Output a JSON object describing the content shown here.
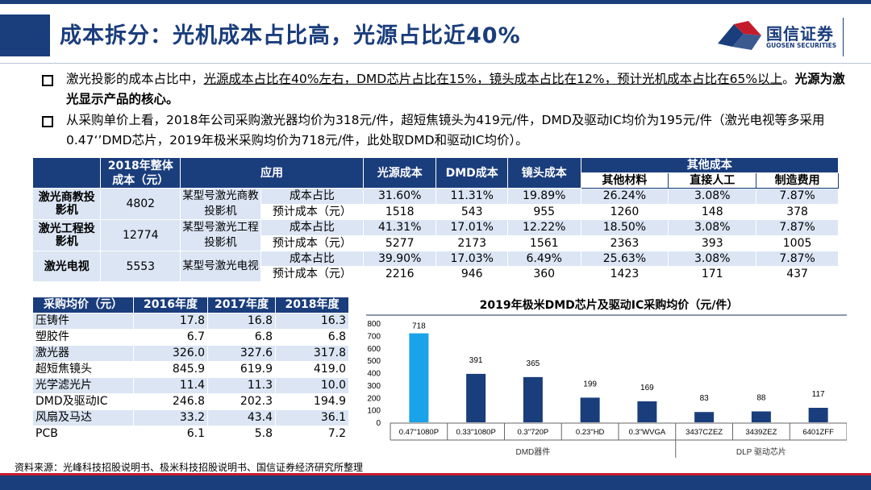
{
  "title": "成本拆分：光机成本占比高，光源占比近40%",
  "logo": {
    "cn": "国信证券",
    "en": "GUOSEN SECURITIES"
  },
  "bullets": [
    {
      "pre": "激光投影的成本占比中，",
      "underline": "光源成本占比在40%左右，DMD芯片占比在15%，镜头成本占比在12%，预计光机成本占比在65%以上",
      "mid": "。",
      "bold": "光源为激光显示产品的核心。"
    },
    {
      "text": "从采购单价上看，2018年公司采购激光器均价为318元/件，超短焦镜头为419元/件，DMD及驱动IC均价为195元/件（激光电视等多采用0.47‘’DMD芯片，2019年极米采购均价为718元/件，此处取DMD和驱动IC均价）。"
    }
  ],
  "main_table": {
    "headers": {
      "total": "2018年整体成本（元）",
      "app": "应用",
      "light": "光源成本",
      "dmd": "DMD成本",
      "lens": "镜头成本",
      "other": "其他成本",
      "other_sub": [
        "其他材料",
        "直接人工",
        "制造费用"
      ]
    },
    "rows": [
      {
        "name": "激光商教投影机",
        "total": "4802",
        "app": "某型号激光商教投影机",
        "lines": [
          {
            "metric": "成本占比",
            "values": [
              "31.60%",
              "11.31%",
              "19.89%",
              "26.24%",
              "3.08%",
              "7.87%"
            ]
          },
          {
            "metric": "预计成本（元）",
            "values": [
              "1518",
              "543",
              "955",
              "1260",
              "148",
              "378"
            ]
          }
        ]
      },
      {
        "name": "激光工程投影机",
        "total": "12774",
        "app": "某型号激光工程投影机",
        "lines": [
          {
            "metric": "成本占比",
            "values": [
              "41.31%",
              "17.01%",
              "12.22%",
              "18.50%",
              "3.08%",
              "7.87%"
            ]
          },
          {
            "metric": "预计成本（元）",
            "values": [
              "5277",
              "2173",
              "1561",
              "2363",
              "393",
              "1005"
            ]
          }
        ]
      },
      {
        "name": "激光电视",
        "total": "5553",
        "app": "某型号激光电视",
        "lines": [
          {
            "metric": "成本占比",
            "values": [
              "39.90%",
              "17.03%",
              "6.49%",
              "25.63%",
              "3.08%",
              "7.87%"
            ]
          },
          {
            "metric": "预计成本（元）",
            "values": [
              "2216",
              "946",
              "360",
              "1423",
              "171",
              "437"
            ]
          }
        ]
      }
    ]
  },
  "price_table": {
    "headers": [
      "采购均价（元）",
      "2016年度",
      "2017年度",
      "2018年度"
    ],
    "rows": [
      [
        "压铸件",
        "17.8",
        "16.8",
        "16.3"
      ],
      [
        "塑胶件",
        "6.7",
        "6.8",
        "6.8"
      ],
      [
        "激光器",
        "326.0",
        "327.6",
        "317.8"
      ],
      [
        "超短焦镜头",
        "845.9",
        "619.9",
        "419.0"
      ],
      [
        "光学滤光片",
        "11.4",
        "11.3",
        "10.0"
      ],
      [
        "DMD及驱动IC",
        "246.8",
        "202.3",
        "194.9"
      ],
      [
        "风扇及马达",
        "33.2",
        "43.4",
        "36.1"
      ],
      [
        "PCB",
        "6.1",
        "5.8",
        "7.2"
      ]
    ]
  },
  "chart_data": {
    "type": "bar",
    "title": "2019年极米DMD芯片及驱动IC采购均价（元/件）",
    "categories": [
      "0.47\"1080P",
      "0.33\"1080P",
      "0.3\"720P",
      "0.23\"HD",
      "0.3\"WVGA",
      "3437CZEZ",
      "3439ZEZ",
      "6401ZFF"
    ],
    "values": [
      718,
      391,
      365,
      199,
      169,
      83,
      88,
      117
    ],
    "groups": [
      {
        "name": "DMD器件",
        "start": 0,
        "end": 4
      },
      {
        "name": "DLP 驱动芯片",
        "start": 5,
        "end": 7
      }
    ],
    "ylim": [
      0,
      800
    ],
    "yticks": [
      0,
      100,
      200,
      300,
      400,
      500,
      600,
      700,
      800
    ],
    "colors": {
      "highlight": "#1aa3e8",
      "default": "#1a3d7c"
    },
    "highlight_index": 0
  },
  "source": "资料来源：光峰科技招股说明书、极米科技招股说明书、国信证券经济研究所整理"
}
